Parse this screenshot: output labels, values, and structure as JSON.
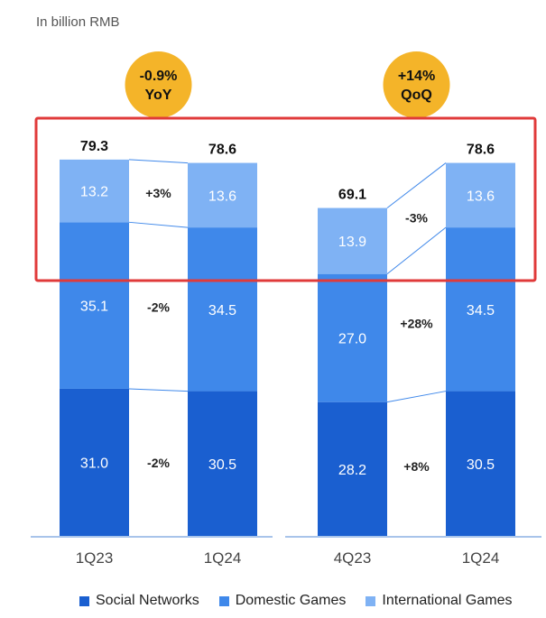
{
  "unit_label": "In billion RMB",
  "colors": {
    "social": "#1a5fd0",
    "domestic": "#3f88ea",
    "international": "#7fb2f4",
    "badge": "#f4b429",
    "highlight": "#e03a3a",
    "connector": "#3f88ea",
    "axis": "#a8c4ea"
  },
  "chart_data": {
    "type": "bar",
    "stacked": true,
    "categories": [
      "1Q23",
      "1Q24",
      "4Q23",
      "1Q24"
    ],
    "series": [
      {
        "name": "Social Networks",
        "values": [
          31.0,
          30.5,
          28.2,
          30.5
        ]
      },
      {
        "name": "Domestic Games",
        "values": [
          35.1,
          34.5,
          27.0,
          34.5
        ]
      },
      {
        "name": "International Games",
        "values": [
          13.2,
          13.6,
          13.9,
          13.6
        ]
      }
    ],
    "totals": [
      "79.3",
      "78.6",
      "69.1",
      "78.6"
    ],
    "segment_labels": [
      [
        "31.0",
        "35.1",
        "13.2"
      ],
      [
        "30.5",
        "34.5",
        "13.6"
      ],
      [
        "28.2",
        "27.0",
        "13.9"
      ],
      [
        "30.5",
        "34.5",
        "13.6"
      ]
    ],
    "groups": [
      {
        "badge": [
          "-0.9%",
          "YoY"
        ],
        "changes": [
          "-2%",
          "-2%",
          "+3%"
        ]
      },
      {
        "badge": [
          "+14%",
          "QoQ"
        ],
        "changes": [
          "+8%",
          "+28%",
          "-3%"
        ]
      }
    ],
    "legend": [
      "Social Networks",
      "Domestic Games",
      "International Games"
    ],
    "legend_position": "bottom",
    "grid": false
  }
}
